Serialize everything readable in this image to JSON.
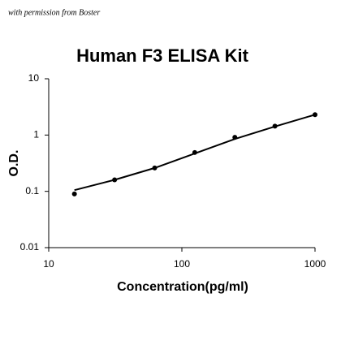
{
  "watermark": "with permission from Boster",
  "chart_data": {
    "type": "scatter",
    "title": "Human F3 ELISA Kit",
    "x_label": "Concentration(pg/ml)",
    "y_label": "O.D.",
    "x": [
      15.6,
      31.25,
      62.5,
      125,
      250,
      500,
      1000
    ],
    "values": [
      0.09,
      0.16,
      0.26,
      0.49,
      0.91,
      1.44,
      2.3
    ],
    "color": "#000000",
    "curve": {
      "x": [
        15.6,
        31.25,
        62.5,
        125,
        250,
        500,
        1000
      ],
      "y": [
        0.105,
        0.16,
        0.26,
        0.47,
        0.85,
        1.42,
        2.3
      ]
    },
    "xlog": true,
    "ylog": true,
    "xlim": [
      10,
      1000
    ],
    "ylim": [
      0.01,
      10
    ],
    "xticks": [
      10,
      100,
      1000
    ],
    "yticks": [
      0.01,
      0.1,
      1,
      10
    ]
  }
}
